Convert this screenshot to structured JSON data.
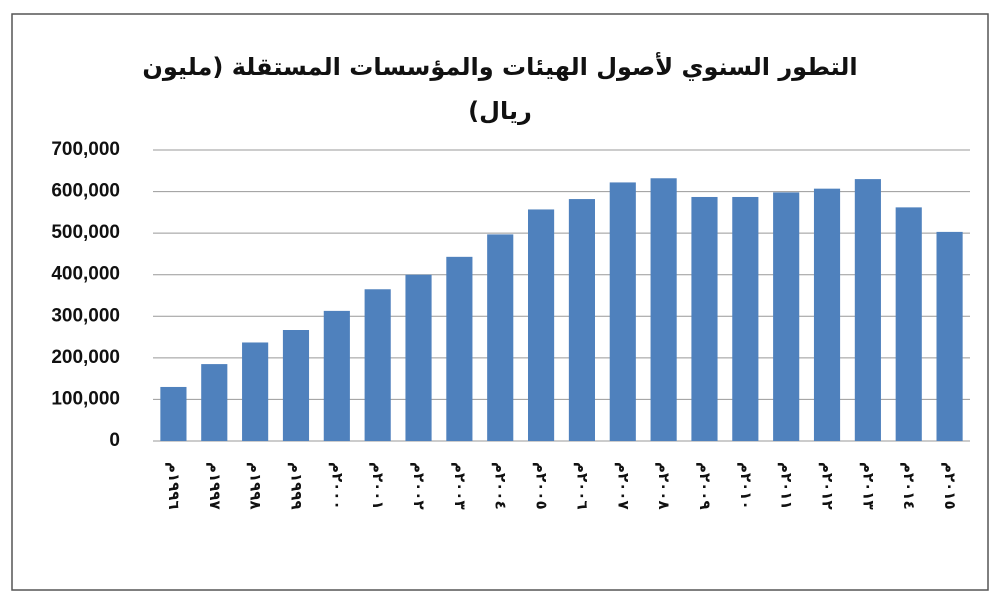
{
  "chart_data": {
    "type": "bar",
    "title": "التطور السنوي لأصول الهيئات والمؤسسات المستقلة (مليون ريال)",
    "categories": [
      "١٩٩٦م",
      "١٩٩٧م",
      "١٩٩٨م",
      "١٩٩٩م",
      "٢٠٠٠م",
      "٢٠٠١م",
      "٢٠٠٢م",
      "٢٠٠٣م",
      "٢٠٠٤م",
      "٢٠٠٥م",
      "٢٠٠٦م",
      "٢٠٠٧م",
      "٢٠٠٨م",
      "٢٠٠٩م",
      "٢٠١٠م",
      "٢٠١١م",
      "٢٠١٢م",
      "٢٠١٣م",
      "٢٠١٤م",
      "٢٠١٥م"
    ],
    "values": [
      130000,
      185000,
      237000,
      267000,
      313000,
      365000,
      400000,
      443000,
      497000,
      557000,
      582000,
      622000,
      632000,
      587000,
      587000,
      598000,
      607000,
      630000,
      562000,
      503000
    ],
    "color": "#4f81bd",
    "ylim": [
      0,
      700000
    ],
    "yticks": [
      0,
      {
        "value": 100000,
        "label": "100,000"
      },
      {
        "value": 200000,
        "label": "200,000"
      },
      {
        "value": 300000,
        "label": "300,000"
      },
      {
        "value": 400000,
        "label": "400,000"
      },
      {
        "value": 500000,
        "label": "500,000"
      },
      {
        "value": 600000,
        "label": "600,000"
      },
      {
        "value": 700000,
        "label": "700,000"
      }
    ],
    "grid": true
  }
}
